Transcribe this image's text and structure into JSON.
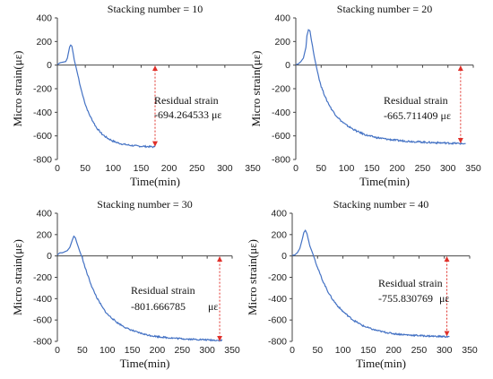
{
  "chart_data": [
    {
      "type": "line",
      "title": "Stacking number = 10",
      "xlabel": "Time(min)",
      "ylabel": "Micro strain(με)",
      "xlim": [
        0,
        350
      ],
      "ylim": [
        -800,
        400
      ],
      "xticks": [
        "0",
        "50",
        "100",
        "150",
        "200",
        "250",
        "300",
        "350"
      ],
      "yticks": [
        "-800",
        "-600",
        "-400",
        "-200",
        "0",
        "200",
        "400"
      ],
      "grid": false,
      "color": "#4472c4",
      "arrow_color": "#e0302a",
      "series": [
        {
          "x": [
            0,
            5,
            10,
            15,
            18,
            20,
            22,
            24,
            26,
            28,
            30,
            32,
            35,
            38,
            40,
            45,
            50,
            55,
            60,
            70,
            80,
            90,
            100,
            110,
            120,
            130,
            140,
            150,
            160,
            170,
            175
          ],
          "y": [
            5,
            20,
            25,
            30,
            60,
            110,
            155,
            170,
            160,
            110,
            50,
            10,
            -50,
            -110,
            -160,
            -250,
            -330,
            -395,
            -445,
            -530,
            -585,
            -620,
            -645,
            -662,
            -672,
            -680,
            -685,
            -688,
            -690,
            -693,
            -694
          ]
        }
      ],
      "arrow": {
        "x": 175,
        "y_from": 0,
        "y_to": -694
      },
      "annotation_label": "Residual strain",
      "annotation_value": "-694.264533 με"
    },
    {
      "type": "line",
      "title": "Stacking number = 20",
      "xlabel": "Time(min)",
      "ylabel": "Micro strain(με)",
      "xlim": [
        0,
        350
      ],
      "ylim": [
        -800,
        400
      ],
      "xticks": [
        "0",
        "50",
        "100",
        "150",
        "200",
        "250",
        "300",
        "350"
      ],
      "yticks": [
        "-800",
        "-600",
        "-400",
        "-200",
        "0",
        "200",
        "400"
      ],
      "grid": false,
      "color": "#4472c4",
      "arrow_color": "#e0302a",
      "series": [
        {
          "x": [
            0,
            5,
            10,
            15,
            20,
            22,
            25,
            28,
            30,
            33,
            36,
            40,
            45,
            50,
            60,
            70,
            80,
            90,
            100,
            120,
            140,
            160,
            180,
            200,
            220,
            240,
            260,
            280,
            300,
            320,
            335
          ],
          "y": [
            5,
            10,
            30,
            60,
            150,
            250,
            300,
            290,
            230,
            160,
            80,
            0,
            -100,
            -180,
            -290,
            -370,
            -430,
            -475,
            -510,
            -560,
            -595,
            -615,
            -628,
            -638,
            -645,
            -650,
            -655,
            -658,
            -661,
            -664,
            -666
          ]
        }
      ],
      "arrow": {
        "x": 325,
        "y_from": 0,
        "y_to": -666
      },
      "annotation_label": "Residual strain",
      "annotation_value": "-665.711409 με"
    },
    {
      "type": "line",
      "title": "Stacking number = 30",
      "xlabel": "Time(min)",
      "ylabel": "Micro strain(με)",
      "xlim": [
        0,
        350
      ],
      "ylim": [
        -800,
        400
      ],
      "xticks": [
        "0",
        "50",
        "100",
        "150",
        "200",
        "250",
        "300",
        "350"
      ],
      "yticks": [
        "-800",
        "-600",
        "-400",
        "-200",
        "0",
        "200",
        "400"
      ],
      "grid": false,
      "color": "#4472c4",
      "arrow_color": "#e0302a",
      "series": [
        {
          "x": [
            0,
            5,
            10,
            15,
            20,
            25,
            30,
            33,
            36,
            40,
            45,
            50,
            55,
            60,
            70,
            80,
            90,
            100,
            120,
            140,
            160,
            180,
            200,
            220,
            240,
            260,
            280,
            300,
            320,
            330
          ],
          "y": [
            10,
            30,
            30,
            40,
            50,
            80,
            150,
            185,
            170,
            110,
            40,
            -20,
            -100,
            -170,
            -300,
            -400,
            -480,
            -545,
            -625,
            -680,
            -715,
            -740,
            -755,
            -765,
            -772,
            -778,
            -782,
            -786,
            -790,
            -792
          ]
        }
      ],
      "arrow": {
        "x": 325,
        "y_from": 0,
        "y_to": -802
      },
      "annotation_label": "Residual strain",
      "annotation_value": "-801.666785",
      "annotation_unit": "με"
    },
    {
      "type": "line",
      "title": "Stacking number = 40",
      "xlabel": "Time(min)",
      "ylabel": "Micro strain(με)",
      "xlim": [
        0,
        350
      ],
      "ylim": [
        -800,
        400
      ],
      "xticks": [
        "0",
        "50",
        "100",
        "150",
        "200",
        "250",
        "300",
        "350"
      ],
      "yticks": [
        "-800",
        "-600",
        "-400",
        "-200",
        "0",
        "200",
        "400"
      ],
      "grid": false,
      "color": "#4472c4",
      "arrow_color": "#e0302a",
      "series": [
        {
          "x": [
            0,
            5,
            10,
            15,
            20,
            23,
            26,
            29,
            32,
            35,
            40,
            45,
            50,
            60,
            70,
            80,
            90,
            100,
            120,
            140,
            160,
            180,
            200,
            220,
            240,
            260,
            280,
            300,
            310
          ],
          "y": [
            5,
            10,
            30,
            70,
            160,
            220,
            240,
            210,
            150,
            90,
            30,
            -40,
            -110,
            -230,
            -330,
            -410,
            -470,
            -520,
            -600,
            -655,
            -690,
            -712,
            -728,
            -737,
            -743,
            -748,
            -752,
            -755,
            -756
          ]
        }
      ],
      "arrow": {
        "x": 305,
        "y_from": 0,
        "y_to": -756
      },
      "annotation_label": "Residual strain",
      "annotation_value": "-755.830769",
      "annotation_unit": "με"
    }
  ]
}
